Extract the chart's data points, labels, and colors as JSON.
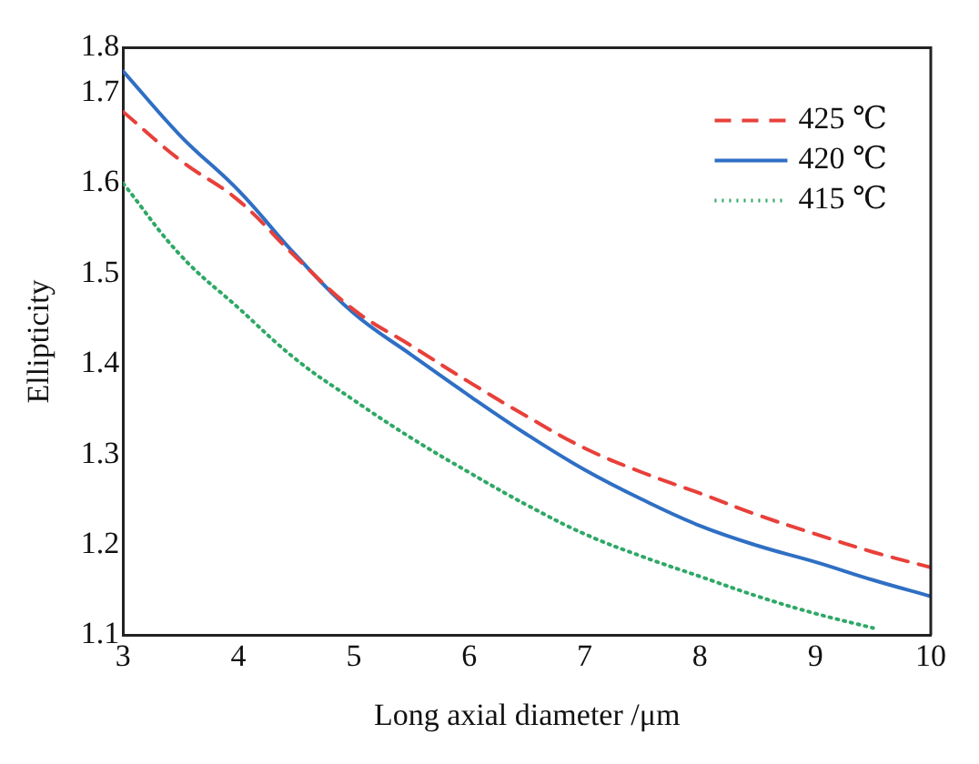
{
  "chart_data": {
    "type": "line",
    "xlabel": "Long axial diameter /μm",
    "ylabel": "Ellipticity",
    "x": [
      3,
      3.5,
      4,
      4.5,
      5,
      5.5,
      6,
      6.5,
      7,
      7.5,
      8,
      8.5,
      9,
      9.5,
      10
    ],
    "series": [
      {
        "name": "425 ℃",
        "color": "#e8403a",
        "line_style": "dashed",
        "values": [
          1.679,
          1.625,
          1.581,
          1.518,
          1.46,
          1.42,
          1.38,
          1.342,
          1.307,
          1.28,
          1.257,
          1.233,
          1.212,
          1.192,
          1.175
        ]
      },
      {
        "name": "420 ℃",
        "color": "#2f6fc4",
        "line_style": "solid",
        "values": [
          1.724,
          1.652,
          1.592,
          1.52,
          1.456,
          1.41,
          1.365,
          1.322,
          1.283,
          1.25,
          1.221,
          1.199,
          1.181,
          1.161,
          1.143
        ]
      },
      {
        "name": "415 ℃",
        "color": "#2fa866",
        "line_style": "dotted",
        "values": [
          1.6,
          1.52,
          1.462,
          1.405,
          1.36,
          1.318,
          1.28,
          1.244,
          1.212,
          1.187,
          1.165,
          1.143,
          1.124,
          1.108,
          null
        ]
      }
    ],
    "xlim": [
      3,
      10
    ],
    "ylim": [
      1.1,
      1.75
    ],
    "xticks": [
      3,
      4,
      5,
      6,
      7,
      8,
      9,
      10
    ],
    "yticks": [
      1.1,
      1.2,
      1.3,
      1.4,
      1.5,
      1.6,
      1.7,
      {
        "value": 1.75,
        "label": "1.8"
      }
    ],
    "grid": false,
    "legend": "top right",
    "marker": "none"
  }
}
